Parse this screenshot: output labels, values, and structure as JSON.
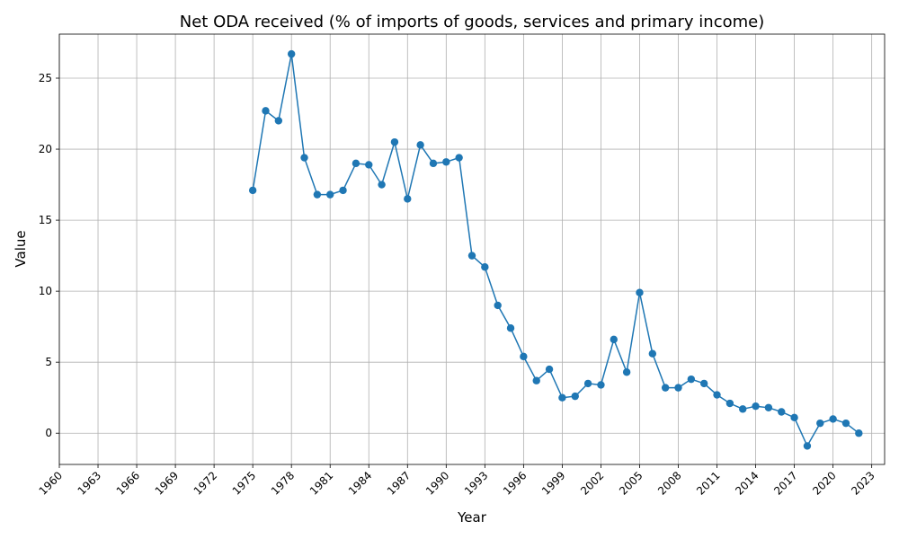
{
  "chart_data": {
    "type": "line",
    "title": "Net ODA received (% of imports of goods, services and primary income)",
    "xlabel": "Year",
    "ylabel": "Value",
    "xlim": [
      1960,
      2024
    ],
    "ylim": [
      -2.2,
      28.1
    ],
    "xticks": [
      1960,
      1963,
      1966,
      1969,
      1972,
      1975,
      1978,
      1981,
      1984,
      1987,
      1990,
      1993,
      1996,
      1999,
      2002,
      2005,
      2008,
      2011,
      2014,
      2017,
      2020,
      2023
    ],
    "yticks": [
      0,
      5,
      10,
      15,
      20,
      25
    ],
    "grid": true,
    "color": "#1f77b4",
    "x": [
      1975,
      1976,
      1977,
      1978,
      1979,
      1980,
      1981,
      1982,
      1983,
      1984,
      1985,
      1986,
      1987,
      1988,
      1989,
      1990,
      1991,
      1992,
      1993,
      1994,
      1995,
      1996,
      1997,
      1998,
      1999,
      2000,
      2001,
      2002,
      2003,
      2004,
      2005,
      2006,
      2007,
      2008,
      2009,
      2010,
      2011,
      2012,
      2013,
      2014,
      2015,
      2016,
      2017,
      2018,
      2019,
      2020,
      2021,
      2022
    ],
    "values": [
      17.1,
      22.7,
      22.0,
      26.7,
      19.4,
      16.8,
      16.8,
      17.1,
      19.0,
      18.9,
      17.5,
      20.5,
      16.5,
      20.3,
      19.0,
      19.1,
      19.4,
      12.5,
      11.7,
      9.0,
      7.4,
      5.4,
      3.7,
      4.5,
      2.5,
      2.6,
      3.5,
      3.4,
      6.6,
      4.3,
      9.9,
      5.6,
      3.2,
      3.2,
      3.8,
      3.5,
      2.7,
      2.1,
      1.7,
      1.9,
      1.8,
      1.5,
      1.1,
      -0.9,
      0.7,
      1.0,
      0.7,
      0.0
    ]
  }
}
